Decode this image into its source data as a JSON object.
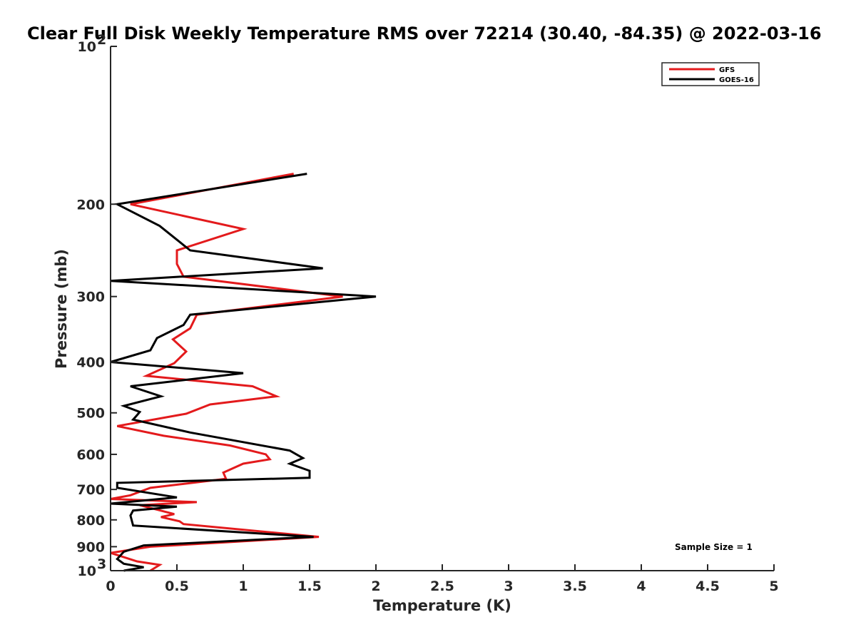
{
  "chart_data": {
    "type": "line",
    "title": "Clear Full Disk Weekly Temperature RMS over 72214 (30.40, -84.35) @ 2022-03-16",
    "xlabel": "Temperature (K)",
    "ylabel": "Pressure (mb)",
    "xlim": [
      0,
      5
    ],
    "ylim": [
      100,
      1000
    ],
    "yscale": "log",
    "y_reversed": true,
    "grid": false,
    "legend_position": "top-right",
    "x_ticks": [
      "0",
      "0.5",
      "1",
      "1.5",
      "2",
      "2.5",
      "3",
      "3.5",
      "4",
      "4.5",
      "5"
    ],
    "y_ticks": [
      {
        "value": 100,
        "base": "10",
        "exp": "2"
      },
      {
        "value": 200,
        "label": "200"
      },
      {
        "value": 300,
        "label": "300"
      },
      {
        "value": 400,
        "label": "400"
      },
      {
        "value": 500,
        "label": "500"
      },
      {
        "value": 600,
        "label": "600"
      },
      {
        "value": 700,
        "label": "700"
      },
      {
        "value": 800,
        "label": "800"
      },
      {
        "value": 900,
        "label": "900"
      },
      {
        "value": 1000,
        "base": "10",
        "exp": "3"
      }
    ],
    "annotation": "Sample Size = 1",
    "series": [
      {
        "name": "GFS",
        "color": "#e31a1c",
        "points": [
          [
            1.38,
            175
          ],
          [
            0.15,
            200
          ],
          [
            1.0,
            223
          ],
          [
            0.5,
            245
          ],
          [
            0.5,
            260
          ],
          [
            0.55,
            275
          ],
          [
            1.75,
            300
          ],
          [
            0.65,
            325
          ],
          [
            0.6,
            345
          ],
          [
            0.47,
            362
          ],
          [
            0.57,
            382
          ],
          [
            0.48,
            402
          ],
          [
            0.27,
            425
          ],
          [
            1.07,
            445
          ],
          [
            1.25,
            465
          ],
          [
            0.75,
            482
          ],
          [
            0.57,
            502
          ],
          [
            0.05,
            530
          ],
          [
            0.4,
            553
          ],
          [
            0.9,
            577
          ],
          [
            1.17,
            600
          ],
          [
            1.2,
            613
          ],
          [
            1.0,
            625
          ],
          [
            0.85,
            650
          ],
          [
            0.87,
            668
          ],
          [
            0.3,
            695
          ],
          [
            0.15,
            718
          ],
          [
            0.0,
            730
          ],
          [
            0.65,
            740
          ],
          [
            0.22,
            750
          ],
          [
            0.48,
            780
          ],
          [
            0.38,
            790
          ],
          [
            0.52,
            805
          ],
          [
            0.55,
            815
          ],
          [
            1.57,
            862
          ],
          [
            0.3,
            900
          ],
          [
            0.0,
            925
          ],
          [
            0.2,
            960
          ],
          [
            0.37,
            975
          ],
          [
            0.3,
            1000
          ]
        ]
      },
      {
        "name": "GOES-16",
        "color": "#000000",
        "points": [
          [
            1.48,
            175
          ],
          [
            0.05,
            200
          ],
          [
            0.37,
            220
          ],
          [
            0.6,
            245
          ],
          [
            1.6,
            265
          ],
          [
            0.0,
            280
          ],
          [
            2.0,
            300
          ],
          [
            0.6,
            325
          ],
          [
            0.55,
            340
          ],
          [
            0.35,
            360
          ],
          [
            0.3,
            380
          ],
          [
            0.0,
            400
          ],
          [
            1.0,
            420
          ],
          [
            0.15,
            445
          ],
          [
            0.38,
            465
          ],
          [
            0.1,
            485
          ],
          [
            0.22,
            498
          ],
          [
            0.2,
            505
          ],
          [
            0.17,
            515
          ],
          [
            0.6,
            545
          ],
          [
            1.35,
            590
          ],
          [
            1.45,
            610
          ],
          [
            1.35,
            625
          ],
          [
            1.5,
            645
          ],
          [
            1.5,
            665
          ],
          [
            0.05,
            680
          ],
          [
            0.05,
            695
          ],
          [
            0.5,
            725
          ],
          [
            0.0,
            745
          ],
          [
            0.5,
            755
          ],
          [
            0.17,
            768
          ],
          [
            0.15,
            785
          ],
          [
            0.17,
            820
          ],
          [
            1.53,
            862
          ],
          [
            0.25,
            895
          ],
          [
            0.1,
            920
          ],
          [
            0.05,
            950
          ],
          [
            0.1,
            970
          ],
          [
            0.25,
            985
          ],
          [
            0.1,
            1000
          ]
        ]
      }
    ]
  }
}
